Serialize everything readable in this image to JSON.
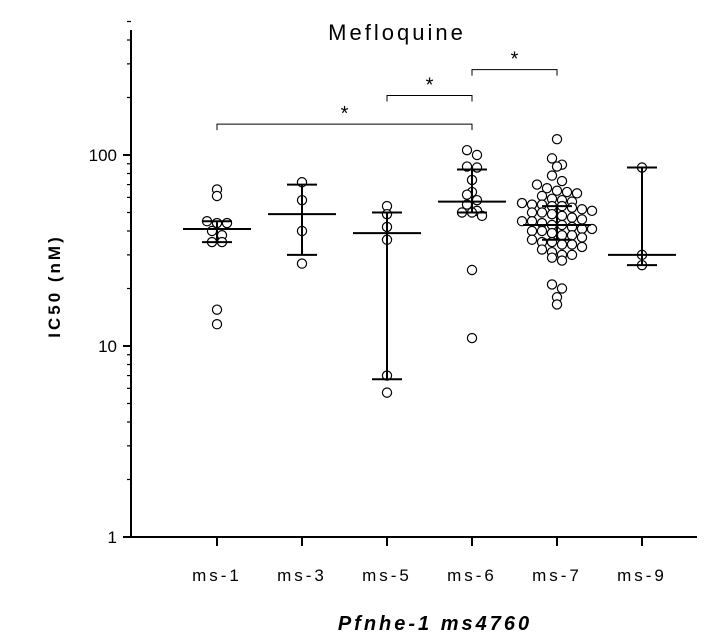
{
  "chart_data": {
    "type": "scatter",
    "title": "Mefloquine",
    "ylabel": "IC50 (nM)",
    "xlabel": "Pfnhe-1 ms4760",
    "y_scale": "log",
    "ylim": [
      1,
      500
    ],
    "y_ticks": [
      {
        "value": 1,
        "label": "1"
      },
      {
        "value": 10,
        "label": "10"
      },
      {
        "value": 100,
        "label": "100"
      }
    ],
    "categories": [
      "ms-1",
      "ms-3",
      "ms-5",
      "ms-6",
      "ms-7",
      "ms-9"
    ],
    "groups": [
      {
        "category": "ms-1",
        "median": 41,
        "q1": 35,
        "q3": 45,
        "points": [
          66,
          61,
          45,
          44,
          44,
          40,
          38,
          35,
          35,
          15.5,
          13
        ]
      },
      {
        "category": "ms-3",
        "median": 49,
        "q1": 30,
        "q3": 70,
        "points": [
          72,
          58,
          40,
          27
        ]
      },
      {
        "category": "ms-5",
        "median": 39,
        "q1": 6.7,
        "q3": 50,
        "points": [
          54,
          49,
          42,
          36,
          7,
          5.7
        ]
      },
      {
        "category": "ms-6",
        "median": 57,
        "q1": 50,
        "q3": 84,
        "points": [
          106,
          100,
          87,
          86,
          74,
          64,
          62,
          58,
          55,
          51,
          50,
          50,
          48,
          25,
          11
        ]
      },
      {
        "category": "ms-7",
        "median": 43,
        "q1": 36,
        "q3": 54,
        "points": [
          121,
          96,
          89,
          87,
          78,
          73,
          70,
          67,
          65,
          64,
          63,
          61,
          59,
          58,
          57,
          56,
          55,
          55,
          54,
          54,
          53,
          52,
          51,
          50,
          50,
          49,
          48,
          47,
          46,
          45,
          45,
          44,
          43,
          43,
          42,
          41,
          41,
          40,
          40,
          39,
          38,
          38,
          37,
          36,
          35,
          35,
          34,
          34,
          33,
          32,
          31,
          30,
          30,
          29,
          28,
          21,
          20,
          18,
          16.5
        ]
      },
      {
        "category": "ms-9",
        "median": 30,
        "q1": 26.5,
        "q3": 86,
        "points": [
          86,
          30,
          26.5
        ]
      }
    ],
    "significance": [
      {
        "from": "ms-1",
        "to": "ms-6",
        "y": 145,
        "label": "*"
      },
      {
        "from": "ms-5",
        "to": "ms-6",
        "y": 205,
        "label": "*"
      },
      {
        "from": "ms-6",
        "to": "ms-7",
        "y": 280,
        "label": "*"
      }
    ],
    "grid": false,
    "legend": "none"
  }
}
